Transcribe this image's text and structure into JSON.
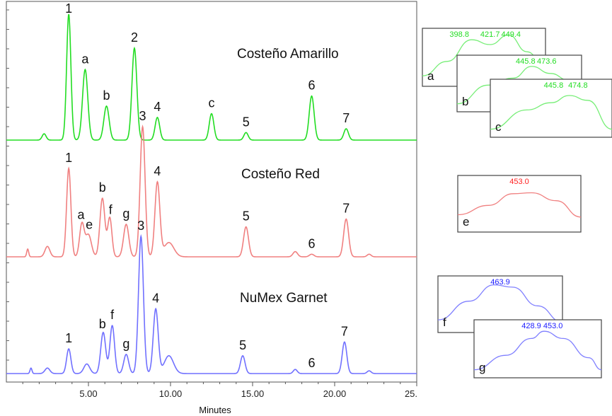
{
  "chart_data": {
    "type": "line",
    "xlabel": "Minutes",
    "x_ticks": [
      "5.00",
      "10.00",
      "15.00",
      "20.00",
      "25."
    ],
    "xlim": [
      0.0,
      25.0
    ],
    "grid": false,
    "colors": {
      "green": "#22dd22",
      "red": "#f08080",
      "blue": "#7070ff"
    },
    "series": [
      {
        "name": "Costeño Amarillo",
        "color": "#22dd22",
        "peaks": [
          {
            "x": 2.3,
            "h": 0.05,
            "w": 0.12
          },
          {
            "x": 3.8,
            "h": 1.0,
            "w": 0.13
          },
          {
            "x": 4.8,
            "h": 0.56,
            "w": 0.16
          },
          {
            "x": 6.1,
            "h": 0.27,
            "w": 0.16
          },
          {
            "x": 7.8,
            "h": 0.73,
            "w": 0.15
          },
          {
            "x": 9.2,
            "h": 0.18,
            "w": 0.14
          },
          {
            "x": 12.5,
            "h": 0.21,
            "w": 0.14
          },
          {
            "x": 14.6,
            "h": 0.06,
            "w": 0.13
          },
          {
            "x": 18.6,
            "h": 0.35,
            "w": 0.15
          },
          {
            "x": 20.7,
            "h": 0.09,
            "w": 0.14
          }
        ],
        "labels": [
          {
            "text": "1",
            "x": 3.8
          },
          {
            "text": "a",
            "x": 4.8
          },
          {
            "text": "b",
            "x": 6.1
          },
          {
            "text": "2",
            "x": 7.8
          },
          {
            "text": "4",
            "x": 9.2
          },
          {
            "text": "c",
            "x": 12.5
          },
          {
            "text": "5",
            "x": 14.6
          },
          {
            "text": "6",
            "x": 18.6
          },
          {
            "text": "7",
            "x": 20.7
          }
        ]
      },
      {
        "name": "Costeño Red",
        "color": "#f08080",
        "peaks": [
          {
            "x": 1.3,
            "h": 0.06,
            "w": 0.06
          },
          {
            "x": 2.5,
            "h": 0.08,
            "w": 0.15
          },
          {
            "x": 3.8,
            "h": 0.68,
            "w": 0.13
          },
          {
            "x": 4.6,
            "h": 0.25,
            "w": 0.14
          },
          {
            "x": 5.0,
            "h": 0.17,
            "w": 0.18
          },
          {
            "x": 5.85,
            "h": 0.45,
            "w": 0.15
          },
          {
            "x": 6.3,
            "h": 0.3,
            "w": 0.13
          },
          {
            "x": 7.3,
            "h": 0.25,
            "w": 0.16
          },
          {
            "x": 8.3,
            "h": 1.0,
            "w": 0.15
          },
          {
            "x": 9.2,
            "h": 0.57,
            "w": 0.15
          },
          {
            "x": 9.9,
            "h": 0.11,
            "w": 0.3
          },
          {
            "x": 14.6,
            "h": 0.23,
            "w": 0.15
          },
          {
            "x": 17.6,
            "h": 0.04,
            "w": 0.14
          },
          {
            "x": 18.6,
            "h": 0.02,
            "w": 0.14
          },
          {
            "x": 20.7,
            "h": 0.29,
            "w": 0.15
          },
          {
            "x": 22.1,
            "h": 0.02,
            "w": 0.12
          }
        ],
        "labels": [
          {
            "text": "1",
            "x": 3.8
          },
          {
            "text": "a",
            "x": 4.55
          },
          {
            "text": "e",
            "x": 5.05
          },
          {
            "text": "b",
            "x": 5.85
          },
          {
            "text": "f",
            "x": 6.35
          },
          {
            "text": "g",
            "x": 7.3
          },
          {
            "text": "3",
            "x": 8.3
          },
          {
            "text": "4",
            "x": 9.2
          },
          {
            "text": "5",
            "x": 14.6
          },
          {
            "text": "6",
            "x": 18.6
          },
          {
            "text": "7",
            "x": 20.7
          }
        ]
      },
      {
        "name": "NuMex Garnet",
        "color": "#7070ff",
        "peaks": [
          {
            "x": 1.5,
            "h": 0.04,
            "w": 0.06
          },
          {
            "x": 2.5,
            "h": 0.04,
            "w": 0.15
          },
          {
            "x": 3.8,
            "h": 0.18,
            "w": 0.13
          },
          {
            "x": 4.9,
            "h": 0.07,
            "w": 0.18
          },
          {
            "x": 5.9,
            "h": 0.3,
            "w": 0.15
          },
          {
            "x": 6.45,
            "h": 0.35,
            "w": 0.14
          },
          {
            "x": 7.3,
            "h": 0.14,
            "w": 0.15
          },
          {
            "x": 8.2,
            "h": 1.0,
            "w": 0.15
          },
          {
            "x": 9.1,
            "h": 0.47,
            "w": 0.15
          },
          {
            "x": 9.9,
            "h": 0.13,
            "w": 0.28
          },
          {
            "x": 14.4,
            "h": 0.13,
            "w": 0.14
          },
          {
            "x": 17.6,
            "h": 0.03,
            "w": 0.12
          },
          {
            "x": 20.6,
            "h": 0.23,
            "w": 0.14
          },
          {
            "x": 22.1,
            "h": 0.02,
            "w": 0.12
          }
        ],
        "labels": [
          {
            "text": "1",
            "x": 3.8
          },
          {
            "text": "b",
            "x": 5.85
          },
          {
            "text": "f",
            "x": 6.45
          },
          {
            "text": "g",
            "x": 7.3
          },
          {
            "text": "3",
            "x": 8.2
          },
          {
            "text": "4",
            "x": 9.1
          },
          {
            "text": "5",
            "x": 14.4
          },
          {
            "text": "6",
            "x": 18.6
          },
          {
            "text": "7",
            "x": 20.6
          }
        ]
      }
    ],
    "insets": [
      {
        "label": "a",
        "color": "#22dd22",
        "values": [
          "398.8",
          "421.7",
          "449.4"
        ]
      },
      {
        "label": "b",
        "color": "#22dd22",
        "values": [
          "445.8",
          "473.6"
        ]
      },
      {
        "label": "c",
        "color": "#22dd22",
        "values": [
          "445.8",
          "474.8"
        ]
      },
      {
        "label": "e",
        "color": "#ff2020",
        "values": [
          "453.0"
        ]
      },
      {
        "label": "f",
        "color": "#1a1aff",
        "values": [
          "463.9"
        ]
      },
      {
        "label": "g",
        "color": "#1a1aff",
        "values": [
          "428.9",
          "453.0"
        ]
      }
    ]
  }
}
